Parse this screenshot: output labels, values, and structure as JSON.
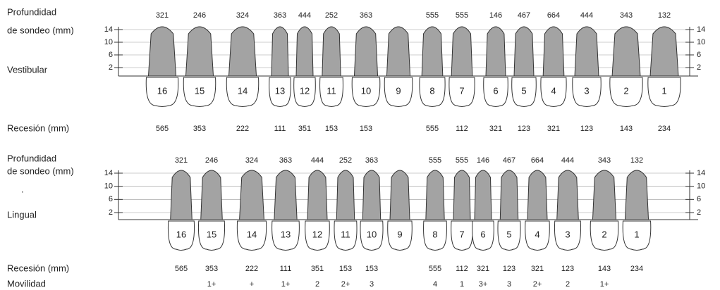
{
  "sections": [
    {
      "probing_label": [
        "Profundidad",
        "de sondeo (mm)"
      ],
      "side_label": "Vestibular",
      "scale_ticks": [
        14,
        10,
        6,
        2
      ],
      "recession_label": "Recesión (mm)",
      "teeth": [
        {
          "number": "16",
          "probing": "321",
          "recession": "565"
        },
        {
          "number": "15",
          "probing": "246",
          "recession": "353"
        },
        {
          "number": "14",
          "probing": "324",
          "recession": "222"
        },
        {
          "number": "13",
          "probing": "363",
          "recession": "111"
        },
        {
          "number": "12",
          "probing": "444",
          "recession": "351"
        },
        {
          "number": "11",
          "probing": "252",
          "recession": "153"
        },
        {
          "number": "10",
          "probing": "363",
          "recession": "153"
        },
        {
          "number": "9"
        },
        {
          "number": "8",
          "probing": "555",
          "recession": "555"
        },
        {
          "number": "7",
          "probing": "555",
          "recession": "112"
        },
        {
          "number": "6",
          "probing": "146",
          "recession": "321"
        },
        {
          "number": "5",
          "probing": "467",
          "recession": "123"
        },
        {
          "number": "4",
          "probing": "664",
          "recession": "321"
        },
        {
          "number": "3",
          "probing": "444",
          "recession": "123"
        },
        {
          "number": "2",
          "probing": "343",
          "recession": "143"
        },
        {
          "number": "1",
          "probing": "132",
          "recession": "234"
        }
      ]
    },
    {
      "probing_label": [
        "Profundidad",
        "de sondeo (mm)"
      ],
      "side_label": "Lingual",
      "mark": ".",
      "scale_ticks": [
        14,
        10,
        6,
        2
      ],
      "recession_label": "Recesión (mm)",
      "mobility_label": "Movilidad",
      "teeth": [
        {
          "number": "16",
          "probing": "321",
          "recession": "565"
        },
        {
          "number": "15",
          "probing": "246",
          "recession": "353",
          "mobility": "1+"
        },
        {
          "number": "14",
          "probing": "324",
          "recession": "222",
          "mobility": "+"
        },
        {
          "number": "13",
          "probing": "363",
          "recession": "111",
          "mobility": "1+"
        },
        {
          "number": "12",
          "probing": "444",
          "recession": "351",
          "mobility": "2"
        },
        {
          "number": "11",
          "probing": "252",
          "recession": "153",
          "mobility": "2+"
        },
        {
          "number": "10",
          "probing": "363",
          "recession": "153",
          "mobility": "3"
        },
        {
          "number": "9"
        },
        {
          "number": "8",
          "probing": "555",
          "recession": "555",
          "mobility": "4"
        },
        {
          "number": "7",
          "probing": "555",
          "recession": "112",
          "mobility": "1"
        },
        {
          "number": "6",
          "probing": "146",
          "recession": "321",
          "mobility": "3+"
        },
        {
          "number": "5",
          "probing": "467",
          "recession": "123",
          "mobility": "3"
        },
        {
          "number": "4",
          "probing": "664",
          "recession": "321",
          "mobility": "2+"
        },
        {
          "number": "3",
          "probing": "444",
          "recession": "123",
          "mobility": "2"
        },
        {
          "number": "2",
          "probing": "343",
          "recession": "143",
          "mobility": "1+"
        },
        {
          "number": "1",
          "probing": "132",
          "recession": "234"
        }
      ]
    }
  ]
}
